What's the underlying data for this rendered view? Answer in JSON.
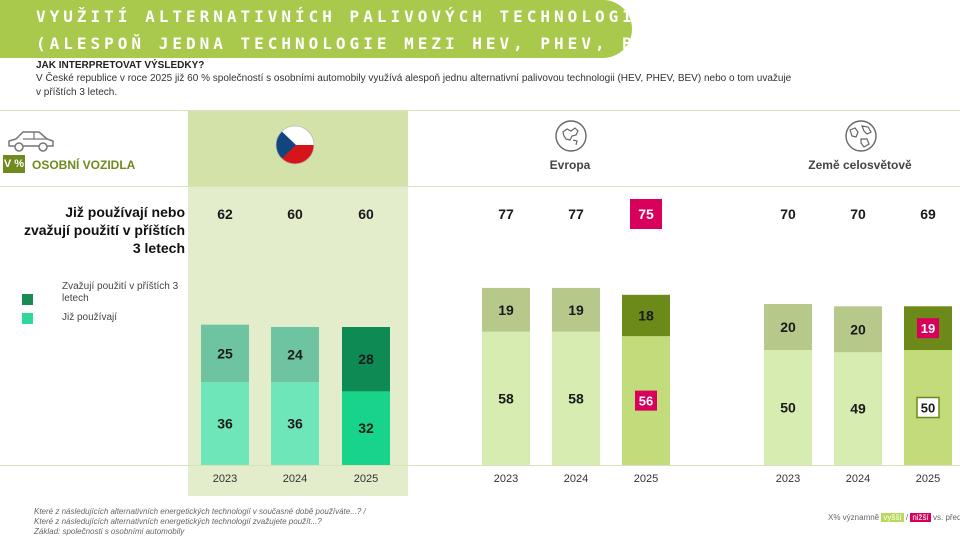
{
  "banner": {
    "line1": "VYUŽITÍ ALTERNATIVNÍCH PALIVOVÝCH TECHNOLOGIÍ",
    "line2": "(ALESPOŇ JEDNA TECHNOLOGIE MEZI HEV, PHEV, BEV)"
  },
  "interpret": {
    "heading": "JAK INTERPRETOVAT VÝSLEDKY?",
    "text": "V České republice v roce 2025 již 60 % společností s osobními automobily využívá alespoň jednu alternativní palivovou technologii (HEV, PHEV, BEV) nebo o tom uvažuje v příštích 3 letech."
  },
  "header": {
    "badge": "V %",
    "vehicle_label": "OSOBNÍ VOZIDLA",
    "regions": [
      "Evropa",
      "Země celosvětově"
    ]
  },
  "question": "Již používají nebo zvažují použití v příštích 3 letech",
  "legend": {
    "consider": "Zvažují použití v příštích 3 letech",
    "using": "Již používají"
  },
  "colors": {
    "cz_consider": "#6ec3a0",
    "cz_using": "#6ee6b9",
    "cz_consider_2025": "#0e8a55",
    "cz_using_2025": "#18d48b",
    "other_consider": "#b6c98b",
    "other_using": "#d6ecb0",
    "other_consider_2025": "#6b8a1a",
    "other_using_2025": "#c2dc7c",
    "lower": "#d9005b",
    "legend_dark": "#1a8a55",
    "legend_light": "#2fd79a"
  },
  "chart_data": {
    "type": "bar",
    "stacked": true,
    "title": "Využití alternativních palivových technologií (alespoň jedna technologie mezi HEV, PHEV, BEV)",
    "unit": "%",
    "groups": [
      {
        "name": "Česká republika",
        "categories": [
          "2023",
          "2024",
          "2025"
        ],
        "using": [
          36,
          36,
          32
        ],
        "considering": [
          25,
          24,
          28
        ],
        "totals": [
          62,
          60,
          60
        ],
        "lower_flags": {
          "using": [
            false,
            false,
            false
          ],
          "considering": [
            false,
            false,
            false
          ],
          "totals": [
            false,
            false,
            false
          ]
        }
      },
      {
        "name": "Evropa",
        "categories": [
          "2023",
          "2024",
          "2025"
        ],
        "using": [
          58,
          58,
          56
        ],
        "considering": [
          19,
          19,
          18
        ],
        "totals": [
          77,
          77,
          75
        ],
        "lower_flags": {
          "using": [
            false,
            false,
            true
          ],
          "considering": [
            false,
            false,
            false
          ],
          "totals": [
            false,
            false,
            true
          ]
        }
      },
      {
        "name": "Země celosvětově",
        "categories": [
          "2023",
          "2024",
          "2025"
        ],
        "using": [
          50,
          49,
          50
        ],
        "considering": [
          20,
          20,
          19
        ],
        "totals": [
          70,
          70,
          69
        ],
        "lower_flags": {
          "using": [
            false,
            false,
            false
          ],
          "considering": [
            false,
            false,
            true
          ],
          "totals": [
            false,
            false,
            false
          ]
        }
      }
    ],
    "series": [
      {
        "name": "Již používají"
      },
      {
        "name": "Zvažují použití v příštích 3 letech"
      }
    ]
  },
  "footnote": {
    "line1": "Které z následujících alternativních energetických technologií v současné době používáte...? /",
    "line2": "Které z následujících alternativních energetických technologií zvažujete použít...?",
    "line3": "Základ: společnosti s osobními automobily"
  },
  "significance": {
    "prefix": "X%  významně",
    "up": "vyšší",
    "sep": "/",
    "down": "nižší",
    "suffix": "vs. předchozí rok"
  }
}
